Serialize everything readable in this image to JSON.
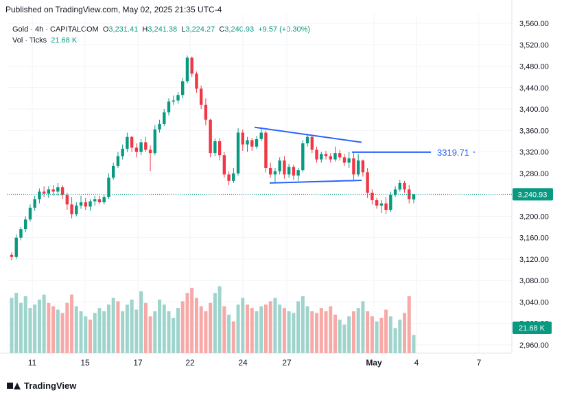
{
  "header": {
    "published": "Published on TradingView.com, May 02, 2025 21:35 UTC-4"
  },
  "legend": {
    "symbol": "Gold · 4h · CAPITALCOM",
    "open_label": "O",
    "open": "3,231.41",
    "high_label": "H",
    "high": "3,241.38",
    "low_label": "L",
    "low": "3,224.27",
    "close_label": "C",
    "close": "3,240.93",
    "change": "+9.57 (+0.30%)",
    "vol_name": "Vol · Ticks",
    "vol_value": "21.68 K"
  },
  "footer": {
    "brand": "TradingView"
  },
  "colors": {
    "up": "#089981",
    "down": "#f23645",
    "vol_up": "#9fd4cc",
    "vol_down": "#f7a9a7",
    "drawing": "#2962ff",
    "grid": "#f0f3fa"
  },
  "chart_data": {
    "type": "candlestick",
    "symbol": "Gold",
    "interval": "4h",
    "exchange": "CAPITALCOM",
    "ylim": [
      2940,
      3570
    ],
    "y_ticks": [
      "3,560.00",
      "3,520.00",
      "3,480.00",
      "3,440.00",
      "3,400.00",
      "3,360.00",
      "3,320.00",
      "3,280.00",
      "3,240.00",
      "3,200.00",
      "3,160.00",
      "3,120.00",
      "3,080.00",
      "3,040.00",
      "3,000.00",
      "2,960.00"
    ],
    "x_ticks": [
      "11",
      "15",
      "17",
      "22",
      "24",
      "27",
      "May",
      "4",
      "7"
    ],
    "current_price": "3,240.93",
    "current_volume": "21.68 K",
    "annotations": [
      {
        "text": "3319.71",
        "type": "horizontal-ray",
        "price": 3319.71
      }
    ],
    "trendlines": [
      {
        "name": "upper",
        "from": [
          371,
          3366
        ],
        "to": [
          527,
          3338
        ]
      },
      {
        "name": "lower",
        "from": [
          393,
          3262
        ],
        "to": [
          527,
          3267
        ]
      }
    ],
    "vol_max": 100,
    "candles": [
      [
        3128,
        3133,
        3118,
        3124
      ],
      [
        3124,
        3166,
        3120,
        3160
      ],
      [
        3160,
        3180,
        3155,
        3176
      ],
      [
        3176,
        3200,
        3170,
        3194
      ],
      [
        3194,
        3222,
        3190,
        3216
      ],
      [
        3216,
        3238,
        3210,
        3232
      ],
      [
        3232,
        3252,
        3224,
        3246
      ],
      [
        3246,
        3256,
        3236,
        3242
      ],
      [
        3242,
        3256,
        3234,
        3250
      ],
      [
        3250,
        3258,
        3238,
        3246
      ],
      [
        3246,
        3262,
        3238,
        3254
      ],
      [
        3254,
        3258,
        3232,
        3240
      ],
      [
        3240,
        3244,
        3212,
        3222
      ],
      [
        3222,
        3236,
        3196,
        3204
      ],
      [
        3204,
        3226,
        3200,
        3220
      ],
      [
        3220,
        3238,
        3214,
        3226
      ],
      [
        3226,
        3234,
        3212,
        3218
      ],
      [
        3218,
        3232,
        3210,
        3228
      ],
      [
        3228,
        3238,
        3220,
        3232
      ],
      [
        3232,
        3238,
        3222,
        3226
      ],
      [
        3226,
        3240,
        3222,
        3236
      ],
      [
        3236,
        3280,
        3232,
        3272
      ],
      [
        3272,
        3300,
        3268,
        3294
      ],
      [
        3294,
        3320,
        3290,
        3312
      ],
      [
        3312,
        3334,
        3306,
        3326
      ],
      [
        3326,
        3356,
        3320,
        3348
      ],
      [
        3348,
        3350,
        3320,
        3328
      ],
      [
        3328,
        3336,
        3310,
        3320
      ],
      [
        3320,
        3344,
        3314,
        3338
      ],
      [
        3338,
        3348,
        3320,
        3324
      ],
      [
        3324,
        3332,
        3284,
        3318
      ],
      [
        3318,
        3370,
        3314,
        3362
      ],
      [
        3362,
        3380,
        3356,
        3372
      ],
      [
        3372,
        3400,
        3368,
        3394
      ],
      [
        3394,
        3420,
        3388,
        3414
      ],
      [
        3414,
        3425,
        3408,
        3416
      ],
      [
        3416,
        3432,
        3410,
        3426
      ],
      [
        3426,
        3458,
        3420,
        3452
      ],
      [
        3452,
        3500,
        3448,
        3496
      ],
      [
        3496,
        3498,
        3460,
        3466
      ],
      [
        3466,
        3470,
        3430,
        3438
      ],
      [
        3438,
        3444,
        3400,
        3408
      ],
      [
        3408,
        3420,
        3370,
        3380
      ],
      [
        3380,
        3382,
        3310,
        3318
      ],
      [
        3318,
        3345,
        3312,
        3340
      ],
      [
        3340,
        3346,
        3304,
        3314
      ],
      [
        3314,
        3320,
        3272,
        3278
      ],
      [
        3278,
        3284,
        3258,
        3266
      ],
      [
        3266,
        3290,
        3262,
        3280
      ],
      [
        3280,
        3364,
        3276,
        3356
      ],
      [
        3356,
        3362,
        3322,
        3334
      ],
      [
        3334,
        3348,
        3320,
        3342
      ],
      [
        3342,
        3346,
        3322,
        3330
      ],
      [
        3330,
        3350,
        3326,
        3344
      ],
      [
        3344,
        3366,
        3340,
        3356
      ],
      [
        3356,
        3360,
        3282,
        3290
      ],
      [
        3290,
        3300,
        3272,
        3278
      ],
      [
        3278,
        3290,
        3264,
        3284
      ],
      [
        3284,
        3310,
        3278,
        3304
      ],
      [
        3304,
        3312,
        3270,
        3278
      ],
      [
        3278,
        3298,
        3272,
        3292
      ],
      [
        3292,
        3296,
        3268,
        3276
      ],
      [
        3276,
        3290,
        3266,
        3286
      ],
      [
        3286,
        3342,
        3282,
        3336
      ],
      [
        3336,
        3354,
        3330,
        3348
      ],
      [
        3348,
        3352,
        3318,
        3324
      ],
      [
        3324,
        3330,
        3300,
        3306
      ],
      [
        3306,
        3320,
        3300,
        3316
      ],
      [
        3316,
        3322,
        3306,
        3312
      ],
      [
        3312,
        3318,
        3300,
        3306
      ],
      [
        3306,
        3330,
        3302,
        3318
      ],
      [
        3318,
        3324,
        3304,
        3310
      ],
      [
        3310,
        3316,
        3294,
        3300
      ],
      [
        3300,
        3320,
        3290,
        3308
      ],
      [
        3308,
        3318,
        3268,
        3278
      ],
      [
        3278,
        3316,
        3274,
        3304
      ],
      [
        3304,
        3306,
        3274,
        3282
      ],
      [
        3282,
        3290,
        3234,
        3244
      ],
      [
        3244,
        3250,
        3222,
        3230
      ],
      [
        3230,
        3234,
        3214,
        3220
      ],
      [
        3220,
        3230,
        3206,
        3224
      ],
      [
        3224,
        3236,
        3204,
        3212
      ],
      [
        3212,
        3246,
        3208,
        3240
      ],
      [
        3240,
        3256,
        3236,
        3250
      ],
      [
        3250,
        3268,
        3246,
        3262
      ],
      [
        3262,
        3266,
        3244,
        3250
      ],
      [
        3250,
        3258,
        3224,
        3232
      ],
      [
        3231.41,
        3241.38,
        3224.27,
        3240.93
      ]
    ],
    "volume": [
      [
        66,
        1
      ],
      [
        72,
        1
      ],
      [
        60,
        1
      ],
      [
        68,
        1
      ],
      [
        54,
        1
      ],
      [
        58,
        1
      ],
      [
        64,
        1
      ],
      [
        70,
        1
      ],
      [
        60,
        0
      ],
      [
        56,
        0
      ],
      [
        52,
        1
      ],
      [
        48,
        0
      ],
      [
        60,
        0
      ],
      [
        70,
        0
      ],
      [
        56,
        1
      ],
      [
        50,
        1
      ],
      [
        44,
        1
      ],
      [
        40,
        0
      ],
      [
        48,
        1
      ],
      [
        54,
        1
      ],
      [
        50,
        1
      ],
      [
        58,
        1
      ],
      [
        66,
        1
      ],
      [
        62,
        0
      ],
      [
        50,
        1
      ],
      [
        58,
        1
      ],
      [
        64,
        1
      ],
      [
        52,
        1
      ],
      [
        74,
        1
      ],
      [
        60,
        0
      ],
      [
        44,
        0
      ],
      [
        50,
        1
      ],
      [
        64,
        1
      ],
      [
        58,
        1
      ],
      [
        50,
        1
      ],
      [
        42,
        1
      ],
      [
        54,
        1
      ],
      [
        62,
        0
      ],
      [
        72,
        0
      ],
      [
        78,
        0
      ],
      [
        66,
        0
      ],
      [
        56,
        0
      ],
      [
        50,
        0
      ],
      [
        60,
        0
      ],
      [
        72,
        1
      ],
      [
        80,
        1
      ],
      [
        56,
        0
      ],
      [
        46,
        1
      ],
      [
        38,
        0
      ],
      [
        58,
        1
      ],
      [
        66,
        1
      ],
      [
        58,
        0
      ],
      [
        54,
        0
      ],
      [
        50,
        1
      ],
      [
        56,
        1
      ],
      [
        58,
        0
      ],
      [
        62,
        0
      ],
      [
        66,
        1
      ],
      [
        58,
        1
      ],
      [
        54,
        0
      ],
      [
        50,
        1
      ],
      [
        48,
        1
      ],
      [
        62,
        1
      ],
      [
        68,
        1
      ],
      [
        56,
        1
      ],
      [
        50,
        0
      ],
      [
        48,
        0
      ],
      [
        54,
        0
      ],
      [
        50,
        0
      ],
      [
        56,
        0
      ],
      [
        46,
        0
      ],
      [
        40,
        1
      ],
      [
        34,
        1
      ],
      [
        44,
        1
      ],
      [
        50,
        0
      ],
      [
        54,
        1
      ],
      [
        62,
        1
      ],
      [
        50,
        0
      ],
      [
        44,
        0
      ],
      [
        38,
        1
      ],
      [
        42,
        0
      ],
      [
        52,
        0
      ],
      [
        44,
        1
      ],
      [
        30,
        1
      ],
      [
        40,
        1
      ],
      [
        48,
        0
      ],
      [
        68,
        0
      ],
      [
        21.68,
        1
      ]
    ]
  }
}
